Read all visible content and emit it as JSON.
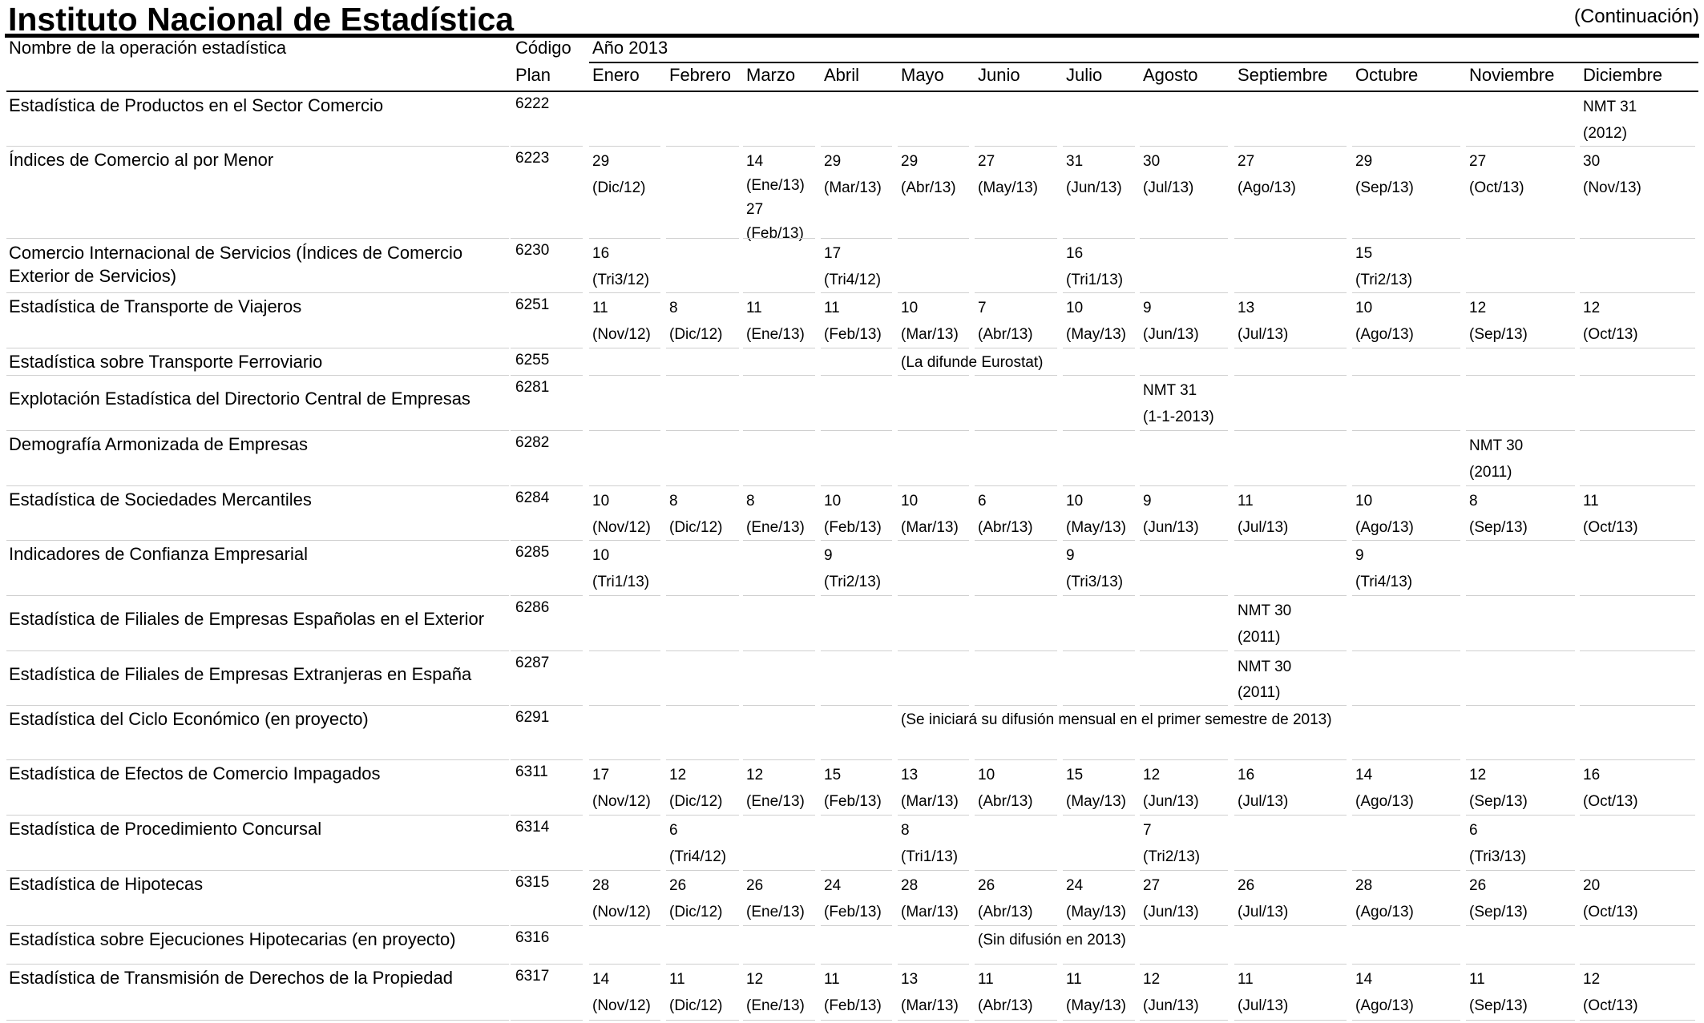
{
  "header": {
    "title": "Instituto Nacional de Estadística",
    "continuation": "(Continuación)"
  },
  "table": {
    "col_name_header": "Nombre de la operación estadística",
    "col_code_header_1": "Código",
    "col_code_header_2": "Plan",
    "year_header": "Año 2013",
    "months": [
      "Enero",
      "Febrero",
      "Marzo",
      "Abril",
      "Mayo",
      "Junio",
      "Julio",
      "Agosto",
      "Septiembre",
      "Octubre",
      "Noviembre",
      "Diciembre"
    ],
    "rows": [
      {
        "name": "Estadística de Productos en el Sector Comercio",
        "code": "6222",
        "cells": [
          null,
          null,
          null,
          null,
          null,
          null,
          null,
          null,
          null,
          null,
          null,
          [
            "NMT 31",
            "(2012)"
          ]
        ]
      },
      {
        "name": "Índices de Comercio al por Menor",
        "code": "6223",
        "cells": [
          [
            "29",
            "(Dic/12)"
          ],
          null,
          [
            "14",
            "(Ene/13)",
            "27",
            "(Feb/13)"
          ],
          [
            "29",
            "(Mar/13)"
          ],
          [
            "29",
            "(Abr/13)"
          ],
          [
            "27",
            "(May/13)"
          ],
          [
            "31",
            "(Jun/13)"
          ],
          [
            "30",
            "(Jul/13)"
          ],
          [
            "27",
            "(Ago/13)"
          ],
          [
            "29",
            "(Sep/13)"
          ],
          [
            "27",
            "(Oct/13)"
          ],
          [
            "30",
            "(Nov/13)"
          ]
        ]
      },
      {
        "name": "Comercio Internacional de Servicios (Índices de Comercio",
        "name2": "Exterior de Servicios)",
        "code": "6230",
        "cells": [
          [
            "16",
            "(Tri3/12)"
          ],
          null,
          null,
          [
            "17",
            "(Tri4/12)"
          ],
          null,
          null,
          [
            "16",
            "(Tri1/13)"
          ],
          null,
          null,
          [
            "15",
            "(Tri2/13)"
          ],
          null,
          null
        ]
      },
      {
        "name": "Estadística de Transporte de Viajeros",
        "code": "6251",
        "cells": [
          [
            "11",
            "(Nov/12)"
          ],
          [
            "8",
            "(Dic/12)"
          ],
          [
            "11",
            "(Ene/13)"
          ],
          [
            "11",
            "(Feb/13)"
          ],
          [
            "10",
            "(Mar/13)"
          ],
          [
            "7",
            "(Abr/13)"
          ],
          [
            "10",
            "(May/13)"
          ],
          [
            "9",
            "(Jun/13)"
          ],
          [
            "13",
            "(Jul/13)"
          ],
          [
            "10",
            "(Ago/13)"
          ],
          [
            "12",
            "(Sep/13)"
          ],
          [
            "12",
            "(Oct/13)"
          ]
        ]
      },
      {
        "name": "Estadística sobre Transporte Ferroviario",
        "code": "6255",
        "span": "(La difunde Eurostat)",
        "span_start": 4
      },
      {
        "name": "Explotación Estadística del Directorio Central de Empresas",
        "code": "6281",
        "cells": [
          null,
          null,
          null,
          null,
          null,
          null,
          null,
          [
            "NMT 31",
            "(1-1-2013)"
          ],
          null,
          null,
          null,
          null
        ]
      },
      {
        "name": "Demografía Armonizada de Empresas",
        "code": "6282",
        "cells": [
          null,
          null,
          null,
          null,
          null,
          null,
          null,
          null,
          null,
          null,
          [
            "NMT 30",
            "(2011)"
          ],
          null
        ]
      },
      {
        "name": "Estadística de Sociedades Mercantiles",
        "code": "6284",
        "cells": [
          [
            "10",
            "(Nov/12)"
          ],
          [
            "8",
            "(Dic/12)"
          ],
          [
            "8",
            "(Ene/13)"
          ],
          [
            "10",
            "(Feb/13)"
          ],
          [
            "10",
            "(Mar/13)"
          ],
          [
            "6",
            "(Abr/13)"
          ],
          [
            "10",
            "(May/13)"
          ],
          [
            "9",
            "(Jun/13)"
          ],
          [
            "11",
            "(Jul/13)"
          ],
          [
            "10",
            "(Ago/13)"
          ],
          [
            "8",
            "(Sep/13)"
          ],
          [
            "11",
            "(Oct/13)"
          ]
        ]
      },
      {
        "name": "Indicadores de Confianza Empresarial",
        "code": "6285",
        "cells": [
          [
            "10",
            "(Tri1/13)"
          ],
          null,
          null,
          [
            "9",
            "(Tri2/13)"
          ],
          null,
          null,
          [
            "9",
            "(Tri3/13)"
          ],
          null,
          null,
          [
            "9",
            "(Tri4/13)"
          ],
          null,
          null
        ]
      },
      {
        "name": "Estadística de Filiales de Empresas Españolas en el Exterior",
        "code": "6286",
        "cells": [
          null,
          null,
          null,
          null,
          null,
          null,
          null,
          null,
          [
            "NMT 30",
            "(2011)"
          ],
          null,
          null,
          null
        ]
      },
      {
        "name": "Estadística de Filiales de Empresas Extranjeras en España",
        "code": "6287",
        "cells": [
          null,
          null,
          null,
          null,
          null,
          null,
          null,
          null,
          [
            "NMT 30",
            "(2011)"
          ],
          null,
          null,
          null
        ]
      },
      {
        "name": "Estadística del Ciclo Económico (en proyecto)",
        "code": "6291",
        "span": "(Se iniciará su difusión mensual en el primer semestre de 2013)",
        "span_start": 4
      },
      {
        "name": "Estadística de Efectos de Comercio Impagados",
        "code": "6311",
        "cells": [
          [
            "17",
            "(Nov/12)"
          ],
          [
            "12",
            "(Dic/12)"
          ],
          [
            "12",
            "(Ene/13)"
          ],
          [
            "15",
            "(Feb/13)"
          ],
          [
            "13",
            "(Mar/13)"
          ],
          [
            "10",
            "(Abr/13)"
          ],
          [
            "15",
            "(May/13)"
          ],
          [
            "12",
            "(Jun/13)"
          ],
          [
            "16",
            "(Jul/13)"
          ],
          [
            "14",
            "(Ago/13)"
          ],
          [
            "12",
            "(Sep/13)"
          ],
          [
            "16",
            "(Oct/13)"
          ]
        ]
      },
      {
        "name": "Estadística de Procedimiento Concursal",
        "code": "6314",
        "cells": [
          null,
          [
            "6",
            "(Tri4/12)"
          ],
          null,
          null,
          [
            "8",
            "(Tri1/13)"
          ],
          null,
          null,
          [
            "7",
            "(Tri2/13)"
          ],
          null,
          null,
          [
            "6",
            "(Tri3/13)"
          ],
          null
        ]
      },
      {
        "name": "Estadística de Hipotecas",
        "code": "6315",
        "cells": [
          [
            "28",
            "(Nov/12)"
          ],
          [
            "26",
            "(Dic/12)"
          ],
          [
            "26",
            "(Ene/13)"
          ],
          [
            "24",
            "(Feb/13)"
          ],
          [
            "28",
            "(Mar/13)"
          ],
          [
            "26",
            "(Abr/13)"
          ],
          [
            "24",
            "(May/13)"
          ],
          [
            "27",
            "(Jun/13)"
          ],
          [
            "26",
            "(Jul/13)"
          ],
          [
            "28",
            "(Ago/13)"
          ],
          [
            "26",
            "(Sep/13)"
          ],
          [
            "20",
            "(Oct/13)"
          ]
        ]
      },
      {
        "name": "Estadística sobre Ejecuciones Hipotecarias (en proyecto)",
        "code": "6316",
        "span": "(Sin difusión en 2013)",
        "span_start": 5
      },
      {
        "name": "Estadística de Transmisión de Derechos de la Propiedad",
        "code": "6317",
        "cells": [
          [
            "14",
            "(Nov/12)"
          ],
          [
            "11",
            "(Dic/12)"
          ],
          [
            "12",
            "(Ene/13)"
          ],
          [
            "11",
            "(Feb/13)"
          ],
          [
            "13",
            "(Mar/13)"
          ],
          [
            "11",
            "(Abr/13)"
          ],
          [
            "11",
            "(May/13)"
          ],
          [
            "12",
            "(Jun/13)"
          ],
          [
            "11",
            "(Jul/13)"
          ],
          [
            "14",
            "(Ago/13)"
          ],
          [
            "11",
            "(Sep/13)"
          ],
          [
            "12",
            "(Oct/13)"
          ]
        ]
      }
    ]
  }
}
